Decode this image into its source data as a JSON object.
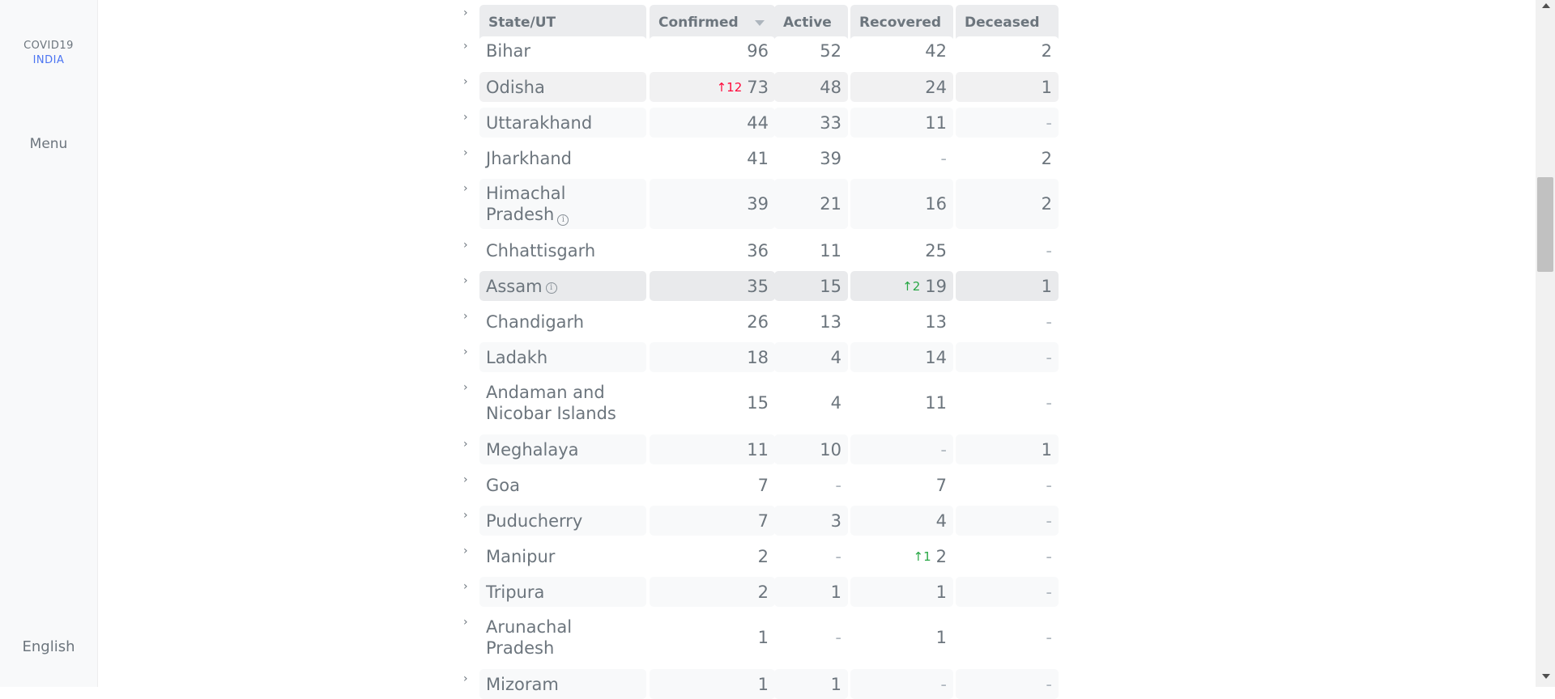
{
  "sidebar": {
    "brand_line1": "COVID19",
    "brand_line2": "INDIA",
    "menu_label": "Menu",
    "language_label": "English"
  },
  "colors": {
    "brand_blue": "#4c75f2",
    "increase_red": "#ff073a",
    "increase_green": "#28a745"
  },
  "table": {
    "headers": [
      "State/UT",
      "Confirmed",
      "Active",
      "Recovered",
      "Deceased"
    ],
    "sort_icon": "sort-descending-icon",
    "rows": [
      {
        "name": "Bihar",
        "confirmed": "96",
        "active": "52",
        "recovered": "42",
        "deceased": "2"
      },
      {
        "name": "Odisha",
        "confirmed": "73",
        "confirmed_delta": "↑12",
        "active": "48",
        "recovered": "24",
        "deceased": "1"
      },
      {
        "name": "Uttarakhand",
        "confirmed": "44",
        "active": "33",
        "recovered": "11",
        "deceased": "-"
      },
      {
        "name": "Jharkhand",
        "confirmed": "41",
        "active": "39",
        "recovered": "-",
        "deceased": "2"
      },
      {
        "name": "Himachal Pradesh",
        "name_line1": "Himachal",
        "name_line2": "Pradesh",
        "info_icon": true,
        "confirmed": "39",
        "active": "21",
        "recovered": "16",
        "deceased": "2"
      },
      {
        "name": "Chhattisgarh",
        "confirmed": "36",
        "active": "11",
        "recovered": "25",
        "deceased": "-"
      },
      {
        "name": "Assam",
        "info_icon": true,
        "confirmed": "35",
        "active": "15",
        "recovered": "19",
        "recovered_delta": "↑2",
        "deceased": "1"
      },
      {
        "name": "Chandigarh",
        "confirmed": "26",
        "active": "13",
        "recovered": "13",
        "deceased": "-"
      },
      {
        "name": "Ladakh",
        "confirmed": "18",
        "active": "4",
        "recovered": "14",
        "deceased": "-"
      },
      {
        "name": "Andaman and Nicobar Islands",
        "name_line1": "Andaman and",
        "name_line2": "Nicobar Islands",
        "confirmed": "15",
        "active": "4",
        "recovered": "11",
        "deceased": "-"
      },
      {
        "name": "Meghalaya",
        "confirmed": "11",
        "active": "10",
        "recovered": "-",
        "deceased": "1"
      },
      {
        "name": "Goa",
        "confirmed": "7",
        "active": "-",
        "recovered": "7",
        "deceased": "-"
      },
      {
        "name": "Puducherry",
        "confirmed": "7",
        "active": "3",
        "recovered": "4",
        "deceased": "-"
      },
      {
        "name": "Manipur",
        "confirmed": "2",
        "active": "-",
        "recovered": "2",
        "recovered_delta": "↑1",
        "deceased": "-"
      },
      {
        "name": "Tripura",
        "confirmed": "2",
        "active": "1",
        "recovered": "1",
        "deceased": "-"
      },
      {
        "name": "Arunachal Pradesh",
        "name_line1": "Arunachal",
        "name_line2": "Pradesh",
        "confirmed": "1",
        "active": "-",
        "recovered": "1",
        "deceased": "-"
      },
      {
        "name": "Mizoram",
        "confirmed": "1",
        "active": "1",
        "recovered": "-",
        "deceased": "-"
      }
    ]
  }
}
